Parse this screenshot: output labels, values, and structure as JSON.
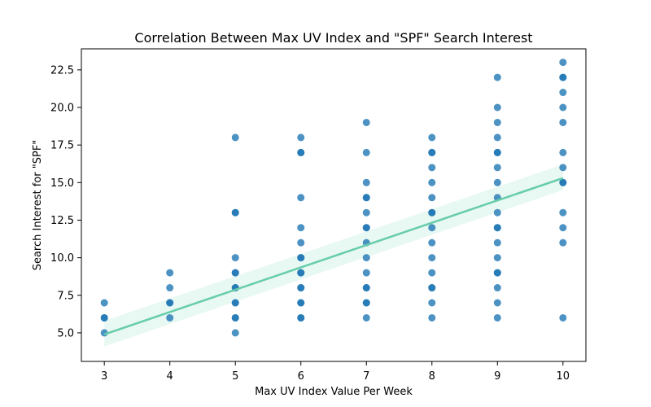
{
  "chart_data": {
    "type": "scatter",
    "title": "Correlation Between Max UV Index and \"SPF\" Search Interest",
    "xlabel": "Max UV Index Value Per Week",
    "ylabel": "Search Interest for \"SPF\"",
    "xlim": [
      2.65,
      10.35
    ],
    "ylim": [
      3.1,
      23.9
    ],
    "x_ticks": [
      3,
      4,
      5,
      6,
      7,
      8,
      9,
      10
    ],
    "y_ticks": [
      5.0,
      7.5,
      10.0,
      12.5,
      15.0,
      17.5,
      20.0,
      22.5
    ],
    "x_tick_labels": [
      "3",
      "4",
      "5",
      "6",
      "7",
      "8",
      "9",
      "10"
    ],
    "y_tick_labels": [
      "5.0",
      "7.5",
      "10.0",
      "12.5",
      "15.0",
      "17.5",
      "20.0",
      "22.5"
    ],
    "grid": false,
    "legend": "none",
    "series": [
      {
        "points": [
          [
            3,
            5
          ],
          [
            3,
            6
          ],
          [
            3,
            6
          ],
          [
            3,
            7
          ],
          [
            4,
            6
          ],
          [
            4,
            7
          ],
          [
            4,
            7
          ],
          [
            4,
            8
          ],
          [
            4,
            9
          ],
          [
            5,
            5
          ],
          [
            5,
            6
          ],
          [
            5,
            6
          ],
          [
            5,
            7
          ],
          [
            5,
            7
          ],
          [
            5,
            8
          ],
          [
            5,
            8
          ],
          [
            5,
            9
          ],
          [
            5,
            9
          ],
          [
            5,
            10
          ],
          [
            5,
            13
          ],
          [
            5,
            13
          ],
          [
            5,
            18
          ],
          [
            6,
            6
          ],
          [
            6,
            6
          ],
          [
            6,
            7
          ],
          [
            6,
            7
          ],
          [
            6,
            8
          ],
          [
            6,
            8
          ],
          [
            6,
            9
          ],
          [
            6,
            9
          ],
          [
            6,
            10
          ],
          [
            6,
            10
          ],
          [
            6,
            11
          ],
          [
            6,
            12
          ],
          [
            6,
            14
          ],
          [
            6,
            17
          ],
          [
            6,
            17
          ],
          [
            6,
            18
          ],
          [
            7,
            6
          ],
          [
            7,
            7
          ],
          [
            7,
            7
          ],
          [
            7,
            8
          ],
          [
            7,
            8
          ],
          [
            7,
            9
          ],
          [
            7,
            10
          ],
          [
            7,
            11
          ],
          [
            7,
            12
          ],
          [
            7,
            12
          ],
          [
            7,
            13
          ],
          [
            7,
            14
          ],
          [
            7,
            14
          ],
          [
            7,
            15
          ],
          [
            7,
            17
          ],
          [
            7,
            19
          ],
          [
            8,
            6
          ],
          [
            8,
            7
          ],
          [
            8,
            8
          ],
          [
            8,
            8
          ],
          [
            8,
            9
          ],
          [
            8,
            10
          ],
          [
            8,
            11
          ],
          [
            8,
            12
          ],
          [
            8,
            13
          ],
          [
            8,
            13
          ],
          [
            8,
            14
          ],
          [
            8,
            15
          ],
          [
            8,
            16
          ],
          [
            8,
            17
          ],
          [
            8,
            17
          ],
          [
            8,
            18
          ],
          [
            9,
            6
          ],
          [
            9,
            7
          ],
          [
            9,
            8
          ],
          [
            9,
            9
          ],
          [
            9,
            9
          ],
          [
            9,
            10
          ],
          [
            9,
            11
          ],
          [
            9,
            12
          ],
          [
            9,
            12
          ],
          [
            9,
            13
          ],
          [
            9,
            14
          ],
          [
            9,
            15
          ],
          [
            9,
            16
          ],
          [
            9,
            17
          ],
          [
            9,
            17
          ],
          [
            9,
            18
          ],
          [
            9,
            19
          ],
          [
            9,
            20
          ],
          [
            9,
            22
          ],
          [
            10,
            6
          ],
          [
            10,
            11
          ],
          [
            10,
            12
          ],
          [
            10,
            13
          ],
          [
            10,
            15
          ],
          [
            10,
            15
          ],
          [
            10,
            16
          ],
          [
            10,
            17
          ],
          [
            10,
            19
          ],
          [
            10,
            20
          ],
          [
            10,
            21
          ],
          [
            10,
            22
          ],
          [
            10,
            22
          ],
          [
            10,
            23
          ]
        ]
      }
    ],
    "regression": {
      "x_range": [
        3,
        10
      ],
      "y_start": 4.9,
      "y_end": 15.3,
      "ci_start": [
        4.1,
        5.8
      ],
      "ci_end": [
        14.5,
        16.2
      ]
    },
    "colors": {
      "points": "#1f77b4",
      "line": "#66cdaa",
      "band": "#66cdaa"
    }
  }
}
